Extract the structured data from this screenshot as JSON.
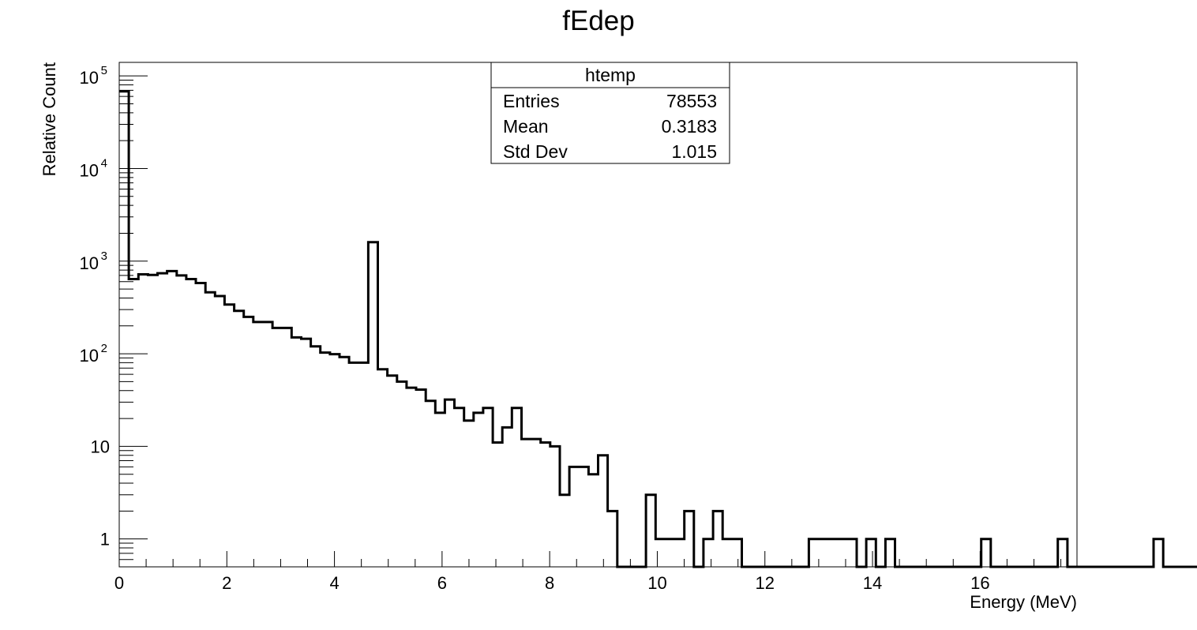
{
  "chart_data": {
    "type": "histogram",
    "title": "fEdep",
    "xlabel": "Energy (MeV)",
    "ylabel": "Relative Count",
    "xlim": [
      0,
      17.8
    ],
    "ylim": [
      0.5,
      140000
    ],
    "yscale": "log",
    "grid": false,
    "stats_box": {
      "title": "htemp",
      "rows": [
        {
          "label": "Entries",
          "value": "78553"
        },
        {
          "label": "Mean",
          "value": "0.3183"
        },
        {
          "label": "Std Dev",
          "value": "1.015"
        }
      ]
    },
    "x_ticks": [
      {
        "value": 0,
        "label": "0"
      },
      {
        "value": 2,
        "label": "2"
      },
      {
        "value": 4,
        "label": "4"
      },
      {
        "value": 6,
        "label": "6"
      },
      {
        "value": 8,
        "label": "8"
      },
      {
        "value": 10,
        "label": "10"
      },
      {
        "value": 12,
        "label": "12"
      },
      {
        "value": 14,
        "label": "14"
      },
      {
        "value": 16,
        "label": "16"
      }
    ],
    "y_ticks": [
      {
        "value": 1,
        "label": "1"
      },
      {
        "value": 10,
        "label": "10"
      },
      {
        "value": 100,
        "base": "10",
        "exp": "2"
      },
      {
        "value": 1000,
        "base": "10",
        "exp": "3"
      },
      {
        "value": 10000,
        "base": "10",
        "exp": "4"
      },
      {
        "value": 100000,
        "base": "10",
        "exp": "5"
      }
    ],
    "bins": {
      "low": 0,
      "width": 0.178,
      "counts": [
        68000,
        640,
        720,
        710,
        740,
        780,
        700,
        640,
        580,
        460,
        420,
        340,
        290,
        250,
        220,
        220,
        190,
        190,
        150,
        145,
        120,
        103,
        99,
        92,
        80,
        80,
        1600,
        68,
        58,
        50,
        43,
        41,
        31,
        23,
        32,
        26,
        19,
        23,
        26,
        11,
        16,
        26,
        12,
        12,
        11,
        10,
        3,
        6,
        6,
        5,
        8,
        2,
        0,
        0,
        0,
        3,
        1,
        1,
        1,
        2,
        0,
        1,
        2,
        1,
        1,
        0,
        0,
        0,
        0,
        0,
        0,
        0,
        1,
        1,
        1,
        1,
        1,
        0,
        1,
        0,
        1,
        0,
        0,
        0,
        0,
        0,
        0,
        0,
        0,
        0,
        1,
        0,
        0,
        0,
        0,
        0,
        0,
        0,
        1,
        0,
        0,
        0,
        0,
        0,
        0,
        0,
        0,
        0,
        1,
        0,
        0,
        0,
        0,
        0,
        0,
        0,
        0,
        0,
        0,
        0
      ]
    }
  }
}
